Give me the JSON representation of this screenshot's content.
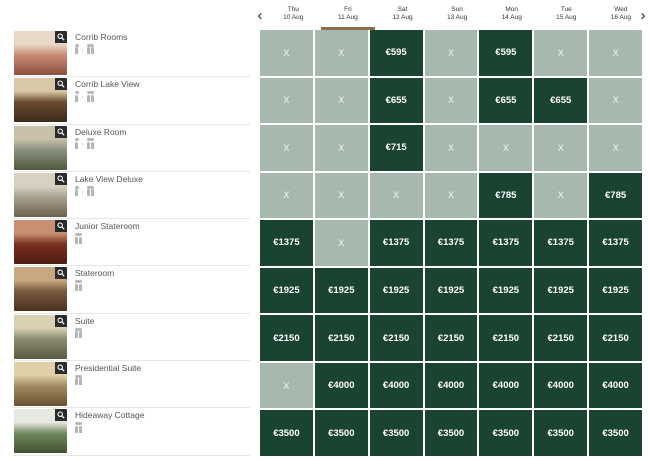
{
  "calendar": {
    "prev_label": "‹",
    "next_label": "›",
    "days": [
      {
        "dow": "Thu",
        "date": "10 Aug",
        "selected": false
      },
      {
        "dow": "Fri",
        "date": "11 Aug",
        "selected": true
      },
      {
        "dow": "Sat",
        "date": "12 Aug",
        "selected": false
      },
      {
        "dow": "Sun",
        "date": "13 Aug",
        "selected": false
      },
      {
        "dow": "Mon",
        "date": "14 Aug",
        "selected": false
      },
      {
        "dow": "Tue",
        "date": "15 Aug",
        "selected": false
      },
      {
        "dow": "Wed",
        "date": "16 Aug",
        "selected": false
      }
    ]
  },
  "colors": {
    "available": "#1b4331",
    "unavailable": "#a7b9ae",
    "selected_underline": "#8b6f47"
  },
  "rooms": [
    {
      "name": "Corrib Rooms",
      "occupancy": "range",
      "thumb": [
        "#c88a72",
        "#e8d8c8",
        "#8a5040"
      ],
      "prices": [
        "X",
        "X",
        "€595",
        "X",
        "€595",
        "X",
        "X"
      ]
    },
    {
      "name": "Corrib Lake View",
      "occupancy": "range",
      "thumb": [
        "#6a4a30",
        "#d8c8a8",
        "#3a2a1a"
      ],
      "prices": [
        "X",
        "X",
        "€655",
        "X",
        "€655",
        "€655",
        "X"
      ]
    },
    {
      "name": "Deluxe Room",
      "occupancy": "range",
      "thumb": [
        "#8a9080",
        "#c8c0a8",
        "#50583c"
      ],
      "prices": [
        "X",
        "X",
        "€715",
        "X",
        "X",
        "X",
        "X"
      ]
    },
    {
      "name": "Lake View Deluxe",
      "occupancy": "range",
      "thumb": [
        "#a8a090",
        "#d8d0c0",
        "#6a6050"
      ],
      "prices": [
        "X",
        "X",
        "X",
        "X",
        "€785",
        "X",
        "€785"
      ]
    },
    {
      "name": "Junior Stateroom",
      "occupancy": "double",
      "thumb": [
        "#7a3020",
        "#c89070",
        "#4a1a10"
      ],
      "prices": [
        "€1375",
        "X",
        "€1375",
        "€1375",
        "€1375",
        "€1375",
        "€1375"
      ]
    },
    {
      "name": "Stateroom",
      "occupancy": "double",
      "thumb": [
        "#7a5a40",
        "#c8a880",
        "#4a3020"
      ],
      "prices": [
        "€1925",
        "€1925",
        "€1925",
        "€1925",
        "€1925",
        "€1925",
        "€1925"
      ]
    },
    {
      "name": "Suite",
      "occupancy": "double",
      "thumb": [
        "#8a8a70",
        "#d8d0b0",
        "#5a5a40"
      ],
      "prices": [
        "€2150",
        "€2150",
        "€2150",
        "€2150",
        "€2150",
        "€2150",
        "€2150"
      ]
    },
    {
      "name": "Presidential Suite",
      "occupancy": "double",
      "thumb": [
        "#a08a60",
        "#e0d0a8",
        "#6a5030"
      ],
      "prices": [
        "X",
        "€4000",
        "€4000",
        "€4000",
        "€4000",
        "€4000",
        "€4000"
      ]
    },
    {
      "name": "Hideaway Cottage",
      "occupancy": "double",
      "thumb": [
        "#708a60",
        "#e8e8e0",
        "#405030"
      ],
      "prices": [
        "€3500",
        "€3500",
        "€3500",
        "€3500",
        "€3500",
        "€3500",
        "€3500"
      ]
    }
  ]
}
